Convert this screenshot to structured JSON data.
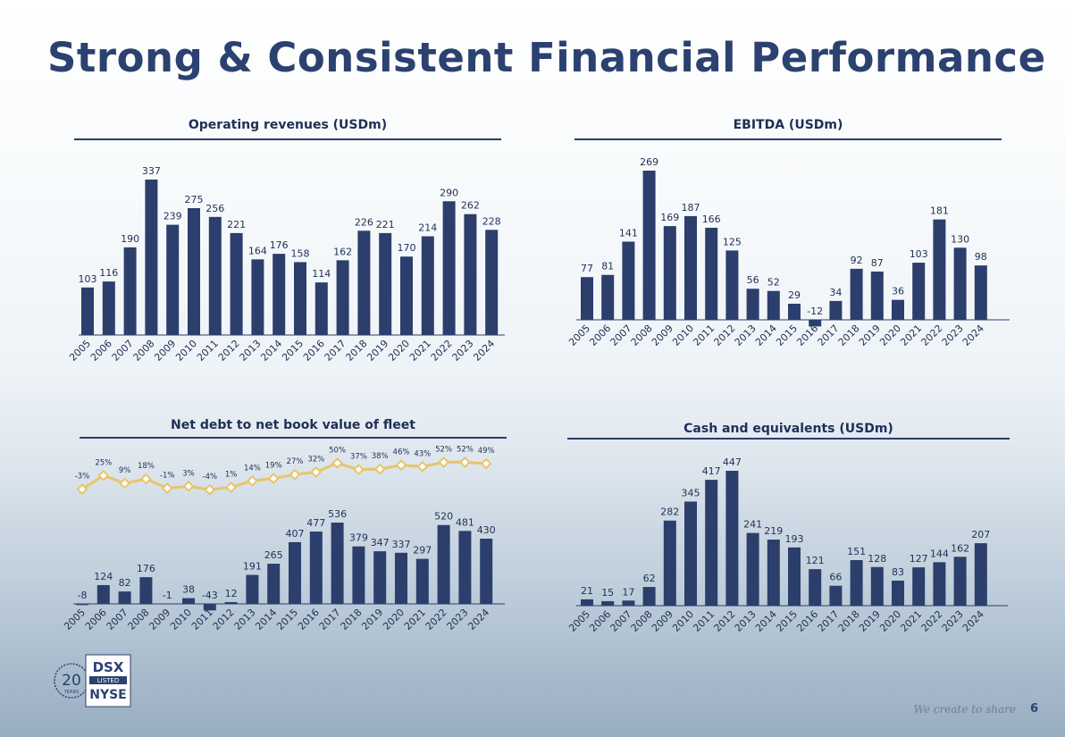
{
  "page": {
    "title": "Strong & Consistent Financial Performance",
    "footer_text": "We create to share",
    "page_number": "6",
    "logo": {
      "years_number": "20",
      "years_label": "YEARS",
      "ticker": "DSX",
      "listed": "LISTED",
      "exchange": "NYSE"
    }
  },
  "colors": {
    "bar": "#2c3e6c",
    "line": "#e8c56a",
    "title": "#2b4170"
  },
  "chart_data": [
    {
      "id": "revenues",
      "type": "bar",
      "title": "Operating revenues (USDm)",
      "categories": [
        "2005",
        "2006",
        "2007",
        "2008",
        "2009",
        "2010",
        "2011",
        "2012",
        "2013",
        "2014",
        "2015",
        "2016",
        "2017",
        "2018",
        "2019",
        "2020",
        "2021",
        "2022",
        "2023",
        "2024"
      ],
      "values": [
        103,
        116,
        190,
        337,
        239,
        275,
        256,
        221,
        164,
        176,
        158,
        114,
        162,
        226,
        221,
        170,
        214,
        290,
        262,
        228
      ],
      "ylim": [
        0,
        337
      ]
    },
    {
      "id": "ebitda",
      "type": "bar",
      "title": "EBITDA (USDm)",
      "categories": [
        "2005",
        "2006",
        "2007",
        "2008",
        "2009",
        "2010",
        "2011",
        "2012",
        "2013",
        "2014",
        "2015",
        "2016",
        "2017",
        "2018",
        "2019",
        "2020",
        "2021",
        "2022",
        "2023",
        "2024"
      ],
      "values": [
        77,
        81,
        141,
        269,
        169,
        187,
        166,
        125,
        56,
        52,
        29,
        -12,
        34,
        92,
        87,
        36,
        103,
        181,
        130,
        98
      ],
      "labels": [
        "77",
        "81",
        "141",
        "269",
        "169",
        "187",
        "166",
        "125",
        "56",
        "52",
        "29",
        "-12",
        "34",
        "92",
        "87",
        "36",
        "103",
        "181",
        "130",
        "98"
      ],
      "ylim": [
        -12,
        269
      ]
    },
    {
      "id": "netdebt",
      "type": "bar+line",
      "title": "Net debt to net book value of fleet",
      "categories": [
        "2005",
        "2006",
        "2007",
        "2008",
        "2009",
        "2010",
        "2011",
        "2012",
        "2013",
        "2014",
        "2015",
        "2016",
        "2017",
        "2018",
        "2019",
        "2020",
        "2021",
        "2022",
        "2023",
        "2024"
      ],
      "values": [
        -8,
        124,
        82,
        176,
        -1,
        38,
        -43,
        12,
        191,
        265,
        407,
        477,
        536,
        379,
        347,
        337,
        297,
        520,
        481,
        430
      ],
      "labels": [
        "-8",
        "124",
        "82",
        "176",
        "-1",
        "38",
        "-43",
        "12",
        "191",
        "265",
        "407",
        "477",
        "536",
        "379",
        "347",
        "337",
        "297",
        "520",
        "481",
        "430"
      ],
      "percent": [
        -3,
        25,
        9,
        18,
        -1,
        3,
        -4,
        1,
        14,
        19,
        27,
        32,
        50,
        37,
        38,
        46,
        43,
        52,
        52,
        49
      ],
      "percent_labels": [
        "-3%",
        "25%",
        "9%",
        "18%",
        "-1%",
        "3%",
        "-4%",
        "1%",
        "14%",
        "19%",
        "27%",
        "32%",
        "50%",
        "37%",
        "38%",
        "46%",
        "43%",
        "52%",
        "52%",
        "49%"
      ],
      "ylim": [
        -43,
        536
      ]
    },
    {
      "id": "cash",
      "type": "bar",
      "title": "Cash and equivalents (USDm)",
      "categories": [
        "2005",
        "2006",
        "2007",
        "2008",
        "2009",
        "2010",
        "2011",
        "2012",
        "2013",
        "2014",
        "2015",
        "2016",
        "2017",
        "2018",
        "2019",
        "2020",
        "2021",
        "2022",
        "2023",
        "2024"
      ],
      "values": [
        21,
        15,
        17,
        62,
        282,
        345,
        417,
        447,
        241,
        219,
        193,
        121,
        66,
        151,
        128,
        83,
        127,
        144,
        162,
        207
      ],
      "ylim": [
        0,
        447
      ]
    }
  ]
}
